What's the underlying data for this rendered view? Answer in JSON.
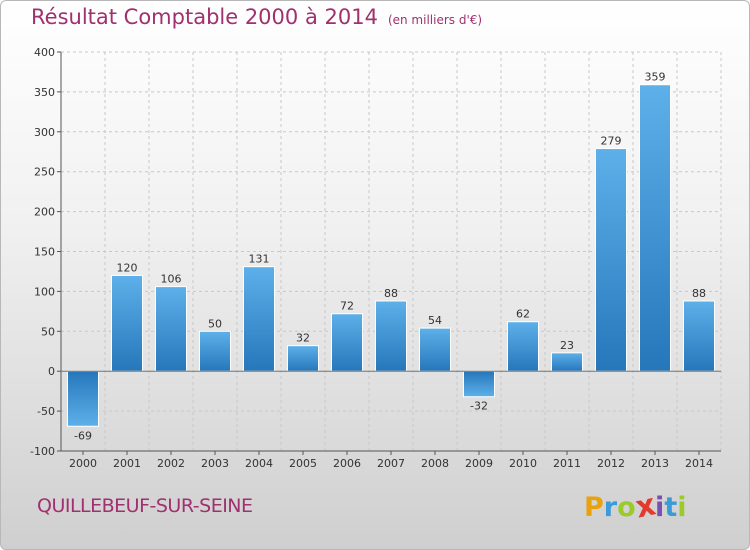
{
  "chart_data": {
    "type": "bar",
    "title": "Résultat Comptable 2000 à 2014",
    "subtitle": "(en milliers d'€)",
    "categories": [
      "2000",
      "2001",
      "2002",
      "2003",
      "2004",
      "2005",
      "2006",
      "2007",
      "2008",
      "2009",
      "2010",
      "2011",
      "2012",
      "2013",
      "2014"
    ],
    "values": [
      -69,
      120,
      106,
      50,
      131,
      32,
      72,
      88,
      54,
      -32,
      62,
      23,
      279,
      359,
      88
    ],
    "data_labels": [
      "-69",
      "120",
      "106",
      "50",
      "131",
      "32",
      "72",
      "88",
      "54",
      "-32",
      "62",
      "23",
      "279",
      "359",
      "88"
    ],
    "ylim": [
      -100,
      400
    ],
    "yticks": [
      "-100",
      "-50",
      "0",
      "50",
      "100",
      "150",
      "200",
      "250",
      "300",
      "350",
      "400"
    ],
    "grid": true,
    "bar_color": "#3a8fd4"
  },
  "footer": {
    "commune": "QUILLEBEUF-SUR-SEINE",
    "logo_letters": [
      "P",
      "r",
      "o",
      "x",
      "i",
      "t",
      "i"
    ],
    "logo_colors": [
      "#e8a20e",
      "#3b9ad8",
      "#9acb2a",
      "#e23a2c",
      "#7a4fb0",
      "#3b9ad8",
      "#9acb2a"
    ]
  }
}
